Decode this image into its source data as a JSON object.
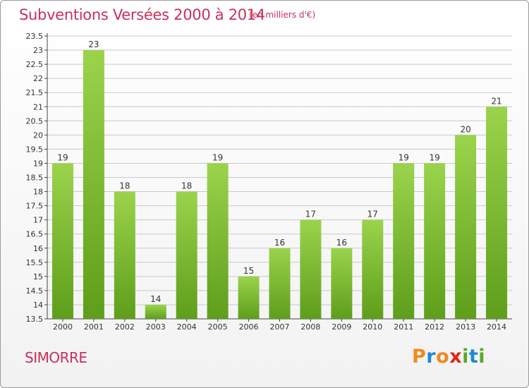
{
  "header": {
    "title": "Subventions Versées 2000 à 2014",
    "unit": "(en milliers d'€)"
  },
  "footer": {
    "city": "SIMORRE",
    "logo_letters": [
      "P",
      "r",
      "o",
      "x",
      "i",
      "t",
      "i"
    ]
  },
  "colors": {
    "title": "#c8315a",
    "bar_light": "#9bd34c",
    "bar_dark": "#5e9e1a",
    "grid": "#c9c9c9",
    "logo": [
      "#f08a1c",
      "#1f8ad1",
      "#f08a1c",
      "#e0261c",
      "#5aa82a",
      "#1f8ad1",
      "#5aa82a"
    ]
  },
  "chart_data": {
    "type": "bar",
    "title": "Subventions Versées 2000 à 2014",
    "subtitle": "(en milliers d'€)",
    "categories": [
      "2000",
      "2001",
      "2002",
      "2003",
      "2004",
      "2005",
      "2006",
      "2007",
      "2008",
      "2009",
      "2010",
      "2011",
      "2012",
      "2013",
      "2014"
    ],
    "values": [
      19,
      23,
      18,
      14,
      18,
      19,
      15,
      16,
      17,
      16,
      17,
      19,
      19,
      20,
      21
    ],
    "ylim": [
      13.5,
      23.5
    ],
    "yticks": [
      "13.5",
      "14",
      "14.5",
      "15",
      "15.5",
      "16",
      "16.5",
      "17",
      "17.5",
      "18",
      "18.5",
      "19",
      "19.5",
      "20",
      "20.5",
      "21",
      "21.5",
      "22",
      "22.5",
      "23",
      "23.5"
    ],
    "grid": true,
    "xlabel": "",
    "ylabel": ""
  }
}
